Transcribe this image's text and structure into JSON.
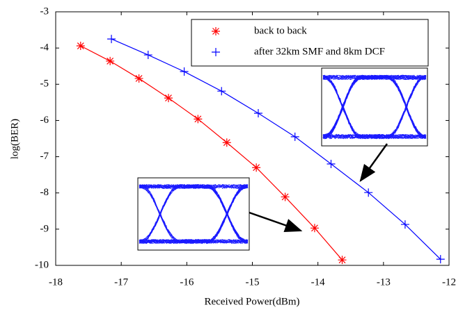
{
  "chart_data": {
    "type": "line",
    "xlabel": "Received Power(dBm)",
    "ylabel": "log(BER)",
    "xlim": [
      -18,
      -12
    ],
    "ylim": [
      -10,
      -3
    ],
    "xticks": [
      -18,
      -17,
      -16,
      -15,
      -14,
      -13,
      -12
    ],
    "yticks": [
      -10,
      -9,
      -8,
      -7,
      -6,
      -5,
      -4,
      -3
    ],
    "legend": "upper right",
    "series": [
      {
        "name": "back to back",
        "color": "#ff0000",
        "marker": "*",
        "x": [
          -17.62,
          -17.17,
          -16.73,
          -16.28,
          -15.83,
          -15.39,
          -14.94,
          -14.5,
          -14.05,
          -13.63
        ],
        "values": [
          -3.94,
          -4.36,
          -4.84,
          -5.38,
          -5.96,
          -6.61,
          -7.3,
          -8.11,
          -8.97,
          -9.85
        ]
      },
      {
        "name": "after 32km SMF and 8km DCF",
        "color": "#0000ff",
        "marker": "+",
        "x": [
          -17.15,
          -16.59,
          -16.04,
          -15.47,
          -14.91,
          -14.35,
          -13.8,
          -13.23,
          -12.67,
          -12.13
        ],
        "values": [
          -3.75,
          -4.19,
          -4.65,
          -5.19,
          -5.8,
          -6.45,
          -7.2,
          -7.99,
          -8.87,
          -9.83
        ]
      }
    ]
  }
}
